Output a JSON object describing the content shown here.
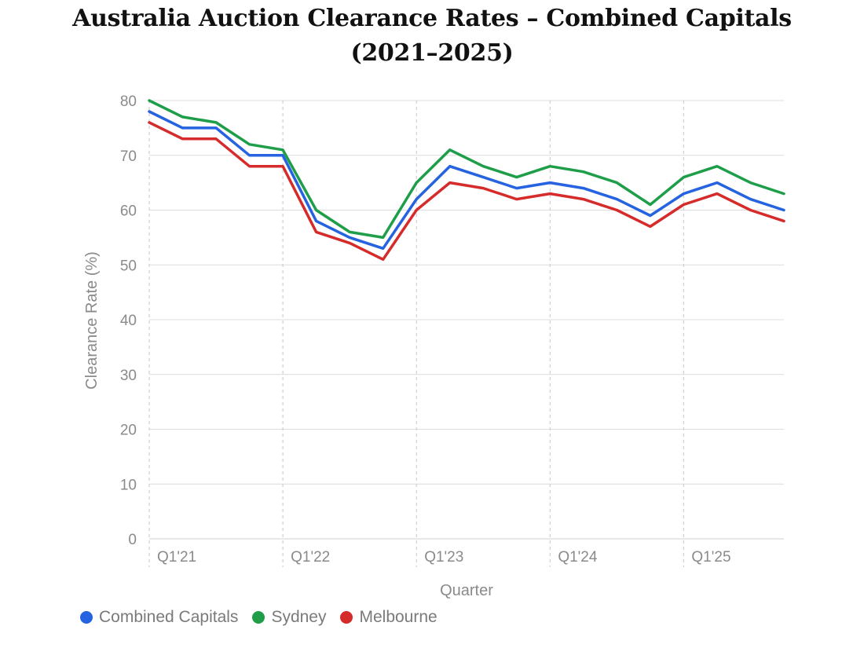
{
  "chart_data": {
    "type": "line",
    "title_line1": "Australia Auction Clearance Rates – Combined Capitals",
    "title_line2": "(2021–2025)",
    "xlabel": "Quarter",
    "ylabel": "Clearance Rate (%)",
    "ylim": [
      0,
      80
    ],
    "yticks": [
      0,
      10,
      20,
      30,
      40,
      50,
      60,
      70,
      80
    ],
    "grid": true,
    "legend_position": "bottom-left",
    "x": [
      "Q1'21",
      "Q2'21",
      "Q3'21",
      "Q4'21",
      "Q1'22",
      "Q2'22",
      "Q3'22",
      "Q4'22",
      "Q1'23",
      "Q2'23",
      "Q3'23",
      "Q4'23",
      "Q1'24",
      "Q2'24",
      "Q3'24",
      "Q4'24",
      "Q1'25",
      "Q2'25",
      "Q3'25",
      "Q4'25"
    ],
    "xtick_labels": [
      "Q1'21",
      "Q1'22",
      "Q1'23",
      "Q1'24",
      "Q1'25"
    ],
    "series": [
      {
        "name": "Combined Capitals",
        "color": "#2563e0",
        "values": [
          78,
          75,
          75,
          70,
          70,
          58,
          55,
          53,
          62,
          68,
          66,
          64,
          65,
          64,
          62,
          59,
          63,
          65,
          62,
          60
        ]
      },
      {
        "name": "Sydney",
        "color": "#1f9e4a",
        "values": [
          80,
          77,
          76,
          72,
          71,
          60,
          56,
          55,
          65,
          71,
          68,
          66,
          68,
          67,
          65,
          61,
          66,
          68,
          65,
          63
        ]
      },
      {
        "name": "Melbourne",
        "color": "#d62b2b",
        "values": [
          76,
          73,
          73,
          68,
          68,
          56,
          54,
          51,
          60,
          65,
          64,
          62,
          63,
          62,
          60,
          57,
          61,
          63,
          60,
          58
        ]
      }
    ]
  }
}
